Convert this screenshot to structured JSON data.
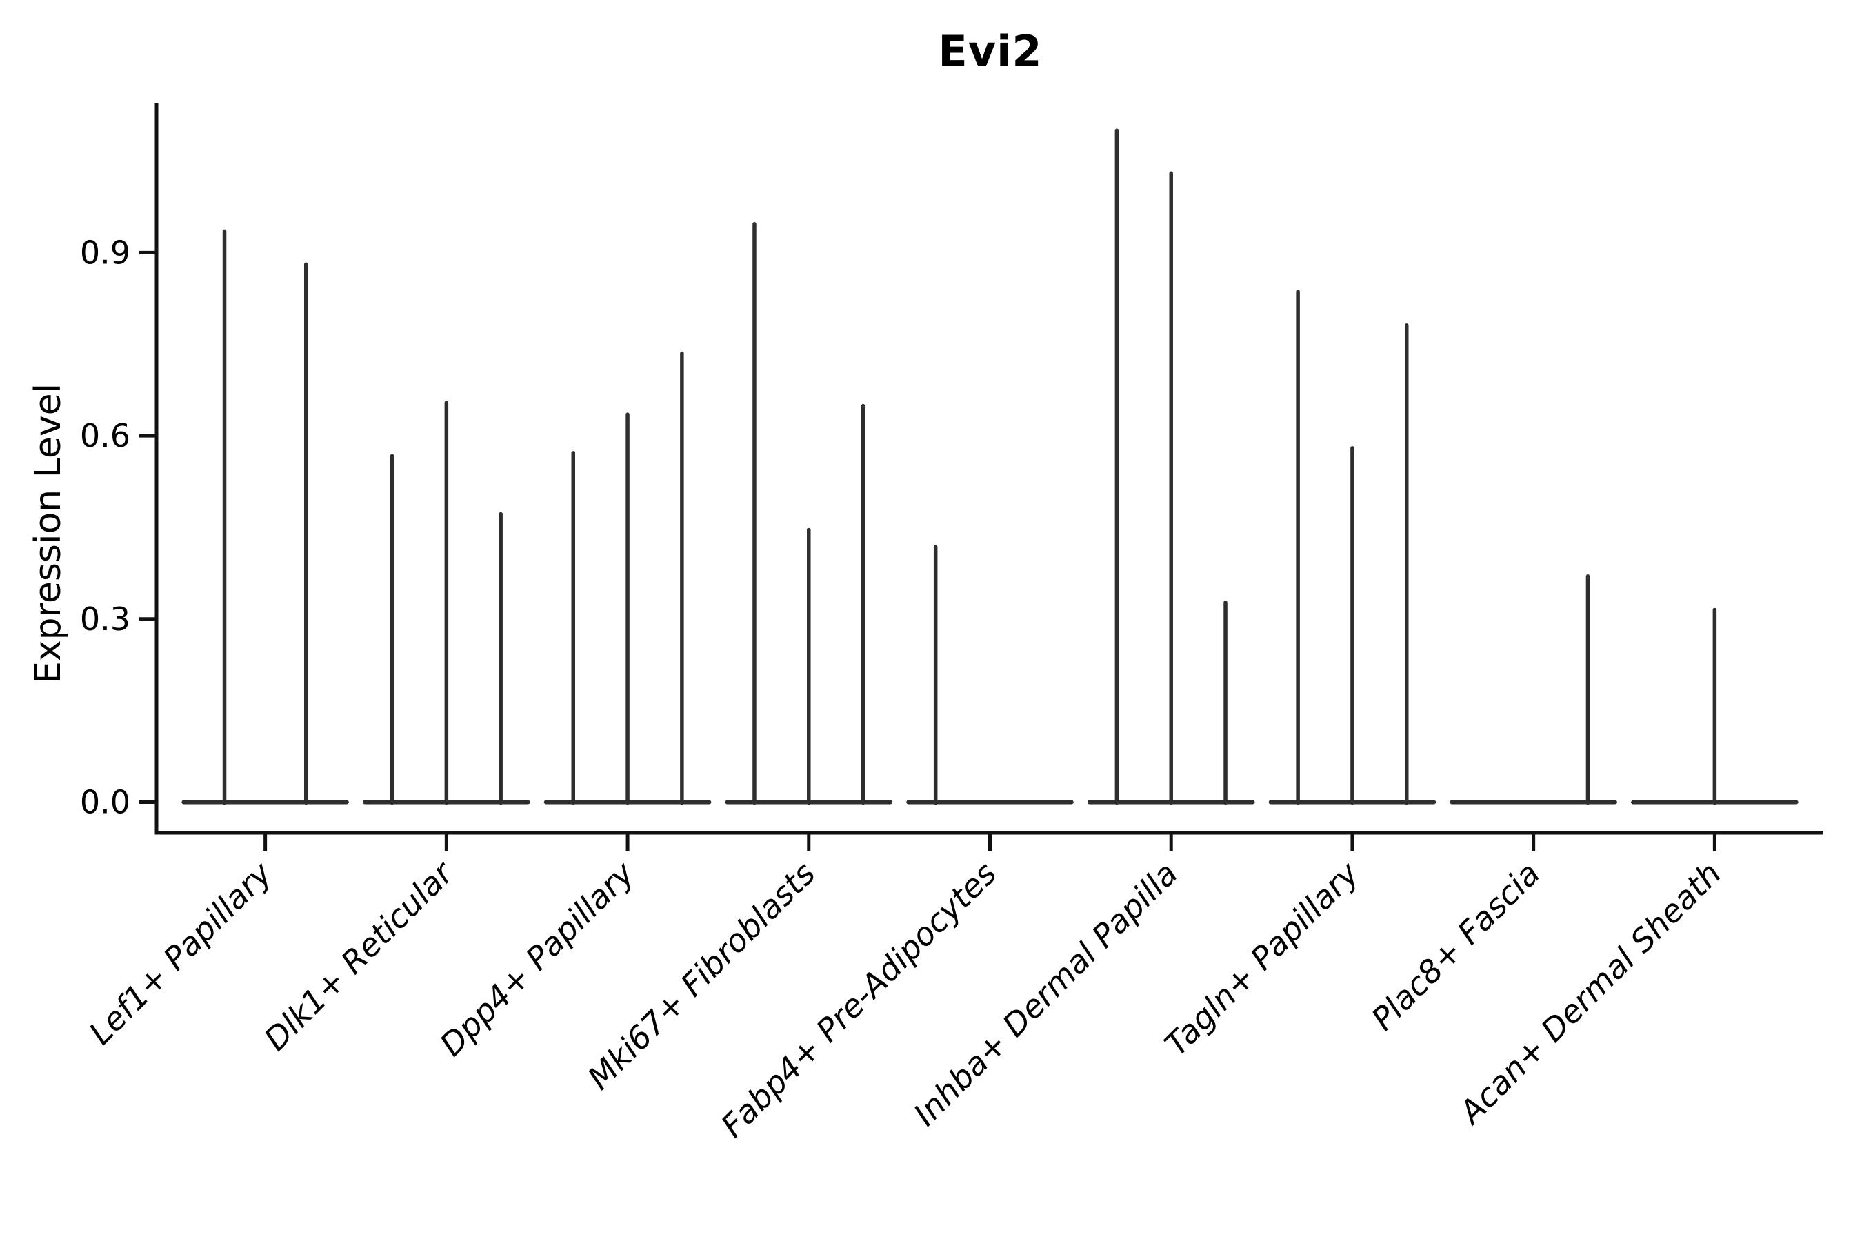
{
  "chart_data": {
    "type": "violin",
    "title": "Evi2",
    "ylabel": "Expression Level",
    "xlabel": "",
    "grid": false,
    "legend": "none",
    "ylim": [
      -0.05,
      1.14
    ],
    "ytick_labels": [
      "0.0",
      "0.3",
      "0.6",
      "0.9"
    ],
    "ytick_values": [
      0.0,
      0.3,
      0.6,
      0.9
    ],
    "categories": [
      "Lef1+ Papillary",
      "Dlk1+ Reticular",
      "Dpp4+ Papillary",
      "Mki67+ Fibroblasts",
      "Fabp4+ Pre-Adipocytes",
      "Inhba+ Dermal Papilla",
      "Tagln+ Papillary",
      "Plac8+ Fascia",
      "Acan+ Dermal Sheath"
    ],
    "groups": [
      {
        "category": "Lef1+ Papillary",
        "n_violins": 2,
        "spikes": [
          {
            "slot": 0,
            "max": 0.935
          },
          {
            "slot": 1,
            "max": 0.881
          }
        ]
      },
      {
        "category": "Dlk1+ Reticular",
        "n_violins": 3,
        "spikes": [
          {
            "slot": 0,
            "max": 0.567
          },
          {
            "slot": 1,
            "max": 0.654
          },
          {
            "slot": 2,
            "max": 0.472
          }
        ]
      },
      {
        "category": "Dpp4+ Papillary",
        "n_violins": 3,
        "spikes": [
          {
            "slot": 0,
            "max": 0.572
          },
          {
            "slot": 1,
            "max": 0.635
          },
          {
            "slot": 2,
            "max": 0.735
          }
        ]
      },
      {
        "category": "Mki67+ Fibroblasts",
        "n_violins": 3,
        "spikes": [
          {
            "slot": 0,
            "max": 0.947
          },
          {
            "slot": 1,
            "max": 0.446
          },
          {
            "slot": 2,
            "max": 0.649
          }
        ]
      },
      {
        "category": "Fabp4+ Pre-Adipocytes",
        "n_violins": 3,
        "spikes": [
          {
            "slot": 0,
            "max": 0.418
          }
        ]
      },
      {
        "category": "Inhba+ Dermal Papilla",
        "n_violins": 3,
        "spikes": [
          {
            "slot": 0,
            "max": 1.1
          },
          {
            "slot": 1,
            "max": 1.03
          },
          {
            "slot": 2,
            "max": 0.327
          }
        ]
      },
      {
        "category": "Tagln+ Papillary",
        "n_violins": 3,
        "spikes": [
          {
            "slot": 0,
            "max": 0.836
          },
          {
            "slot": 1,
            "max": 0.58
          },
          {
            "slot": 2,
            "max": 0.781
          }
        ]
      },
      {
        "category": "Plac8+ Fascia",
        "n_violins": 3,
        "spikes": [
          {
            "slot": 2,
            "max": 0.37
          }
        ]
      },
      {
        "category": "Acan+ Dermal Sheath",
        "n_violins": 1,
        "spikes": [
          {
            "slot": 0,
            "max": 0.315
          }
        ]
      }
    ],
    "colors": {
      "violin": "#2e2e2e",
      "axis": "#111111",
      "text": "#000000",
      "background": "#ffffff"
    }
  }
}
